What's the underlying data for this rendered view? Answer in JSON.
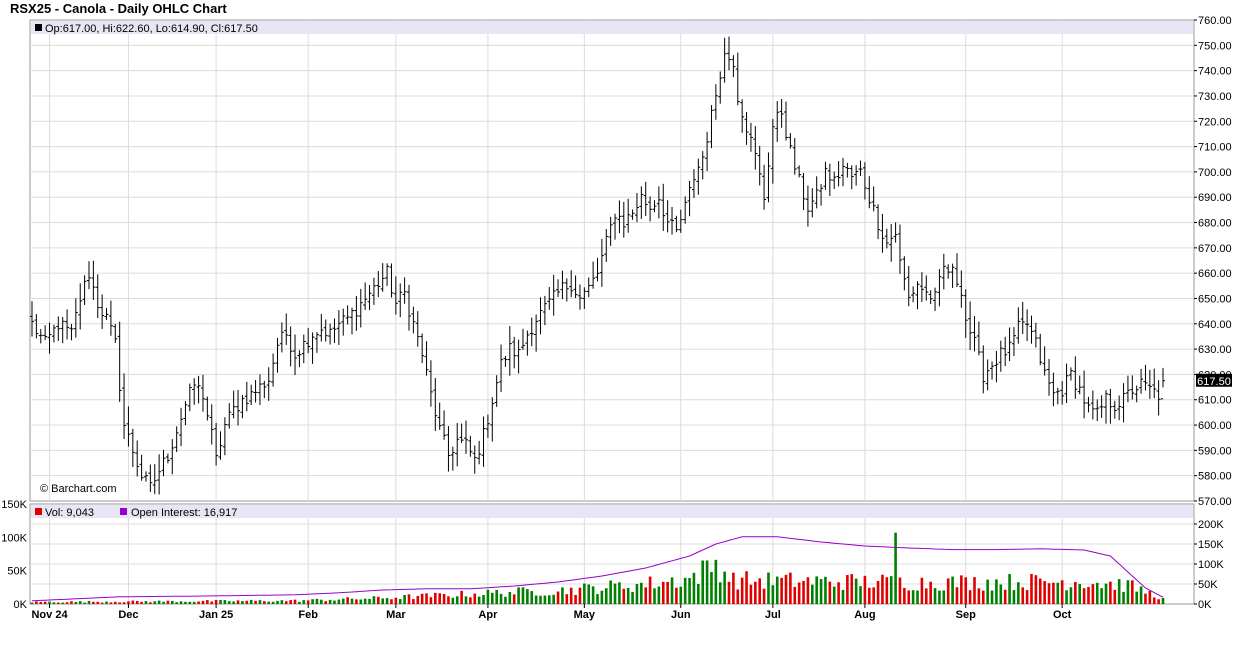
{
  "chart_title": "RSX25 - Canola - Daily OHLC Chart",
  "price_legend": "Op:617.00, Hi:622.60, Lo:614.90, Cl:617.50",
  "watermark": "© Barchart.com",
  "last_price_label": "617.50",
  "volume_legend": {
    "vol_label": "Vol: 9,043",
    "oi_label": "Open Interest: 16,917"
  },
  "colors": {
    "legend_band": "#e6e6f5",
    "up_volume": "#008000",
    "down_volume": "#e00000",
    "open_interest": "#9900cc",
    "price_bar": "#000000",
    "last_price_tag": "#000000",
    "grid": "#dcdcdc"
  },
  "chart_data": [
    {
      "type": "ohlc",
      "price_axis": {
        "ylim": [
          570,
          760
        ],
        "ticks": [
          "570.00",
          "580.00",
          "590.00",
          "600.00",
          "610.00",
          "620.00",
          "630.00",
          "640.00",
          "650.00",
          "660.00",
          "670.00",
          "680.00",
          "690.00",
          "700.00",
          "710.00",
          "720.00",
          "730.00",
          "740.00",
          "750.00",
          "760.00"
        ]
      },
      "x_ticks": [
        "Nov 24",
        "Dec",
        "Jan 25",
        "Feb",
        "Mar",
        "Apr",
        "May",
        "Jun",
        "Jul",
        "Aug",
        "Sep",
        "Oct"
      ],
      "close_anchors": [
        [
          0,
          640
        ],
        [
          3,
          632
        ],
        [
          6,
          640
        ],
        [
          9,
          636
        ],
        [
          11,
          650
        ],
        [
          13,
          660
        ],
        [
          15,
          648
        ],
        [
          17,
          642
        ],
        [
          19,
          632
        ],
        [
          21,
          600
        ],
        [
          23,
          590
        ],
        [
          25,
          580
        ],
        [
          27,
          575
        ],
        [
          29,
          582
        ],
        [
          31,
          588
        ],
        [
          33,
          598
        ],
        [
          35,
          608
        ],
        [
          37,
          616
        ],
        [
          39,
          612
        ],
        [
          41,
          596
        ],
        [
          42,
          586
        ],
        [
          44,
          600
        ],
        [
          46,
          606
        ],
        [
          48,
          610
        ],
        [
          50,
          612
        ],
        [
          52,
          615
        ],
        [
          54,
          618
        ],
        [
          56,
          632
        ],
        [
          58,
          636
        ],
        [
          60,
          628
        ],
        [
          62,
          632
        ],
        [
          64,
          636
        ],
        [
          66,
          638
        ],
        [
          68,
          636
        ],
        [
          70,
          640
        ],
        [
          72,
          642
        ],
        [
          74,
          646
        ],
        [
          76,
          650
        ],
        [
          78,
          654
        ],
        [
          80,
          658
        ],
        [
          81,
          660
        ],
        [
          83,
          648
        ],
        [
          85,
          652
        ],
        [
          87,
          640
        ],
        [
          89,
          628
        ],
        [
          91,
          612
        ],
        [
          93,
          598
        ],
        [
          95,
          588
        ],
        [
          97,
          594
        ],
        [
          99,
          592
        ],
        [
          101,
          586
        ],
        [
          103,
          596
        ],
        [
          105,
          610
        ],
        [
          107,
          624
        ],
        [
          109,
          630
        ],
        [
          111,
          628
        ],
        [
          113,
          636
        ],
        [
          115,
          642
        ],
        [
          117,
          646
        ],
        [
          119,
          650
        ],
        [
          121,
          654
        ],
        [
          123,
          656
        ],
        [
          125,
          650
        ],
        [
          127,
          654
        ],
        [
          129,
          660
        ],
        [
          131,
          672
        ],
        [
          133,
          684
        ],
        [
          135,
          680
        ],
        [
          137,
          684
        ],
        [
          139,
          690
        ],
        [
          141,
          686
        ],
        [
          143,
          690
        ],
        [
          145,
          680
        ],
        [
          147,
          676
        ],
        [
          149,
          686
        ],
        [
          151,
          698
        ],
        [
          153,
          706
        ],
        [
          155,
          722
        ],
        [
          157,
          740
        ],
        [
          158,
          746
        ],
        [
          160,
          744
        ],
        [
          161,
          730
        ],
        [
          163,
          718
        ],
        [
          165,
          706
        ],
        [
          167,
          690
        ],
        [
          169,
          718
        ],
        [
          171,
          724
        ],
        [
          173,
          708
        ],
        [
          175,
          696
        ],
        [
          177,
          686
        ],
        [
          179,
          690
        ],
        [
          181,
          700
        ],
        [
          183,
          696
        ],
        [
          185,
          702
        ],
        [
          187,
          698
        ],
        [
          189,
          700
        ],
        [
          191,
          690
        ],
        [
          193,
          680
        ],
        [
          195,
          672
        ],
        [
          197,
          676
        ],
        [
          198,
          664
        ],
        [
          200,
          650
        ],
        [
          202,
          656
        ],
        [
          204,
          652
        ],
        [
          206,
          650
        ],
        [
          208,
          662
        ],
        [
          210,
          660
        ],
        [
          212,
          654
        ],
        [
          213,
          642
        ],
        [
          215,
          632
        ],
        [
          217,
          620
        ],
        [
          219,
          624
        ],
        [
          221,
          628
        ],
        [
          223,
          630
        ],
        [
          225,
          638
        ],
        [
          227,
          640
        ],
        [
          229,
          632
        ],
        [
          231,
          620
        ],
        [
          233,
          612
        ],
        [
          235,
          614
        ],
        [
          237,
          620
        ],
        [
          239,
          614
        ],
        [
          241,
          606
        ],
        [
          243,
          604
        ],
        [
          245,
          610
        ],
        [
          247,
          608
        ],
        [
          249,
          610
        ],
        [
          251,
          614
        ],
        [
          253,
          616
        ],
        [
          255,
          614
        ],
        [
          257,
          612
        ],
        [
          258,
          617.5
        ]
      ],
      "volume_axis": {
        "ylim": [
          0,
          150000
        ],
        "ticks": [
          "0K",
          "50K",
          "100K",
          "150K"
        ]
      },
      "open_interest_axis": {
        "ylim": [
          0,
          200000
        ],
        "ticks": [
          "0K",
          "50K",
          "100K",
          "150K",
          "200K"
        ]
      },
      "volume_anchors": [
        [
          0,
          3000
        ],
        [
          60,
          5000
        ],
        [
          70,
          7000
        ],
        [
          80,
          9000
        ],
        [
          90,
          12000
        ],
        [
          100,
          15000
        ],
        [
          110,
          18000
        ],
        [
          120,
          20000
        ],
        [
          130,
          25000
        ],
        [
          140,
          30000
        ],
        [
          150,
          38000
        ],
        [
          156,
          60000
        ],
        [
          160,
          36000
        ],
        [
          170,
          35000
        ],
        [
          180,
          34000
        ],
        [
          196,
          33000
        ],
        [
          200,
          32000
        ],
        [
          240,
          34000
        ],
        [
          250,
          28000
        ],
        [
          258,
          9043
        ]
      ],
      "volume_spike": {
        "day": 197,
        "value": 107000
      },
      "open_interest_anchors": [
        [
          0,
          8000
        ],
        [
          20,
          18000
        ],
        [
          40,
          20000
        ],
        [
          60,
          23000
        ],
        [
          70,
          28000
        ],
        [
          80,
          35000
        ],
        [
          90,
          38000
        ],
        [
          100,
          38000
        ],
        [
          110,
          45000
        ],
        [
          120,
          55000
        ],
        [
          130,
          70000
        ],
        [
          140,
          90000
        ],
        [
          150,
          120000
        ],
        [
          156,
          150000
        ],
        [
          162,
          168000
        ],
        [
          170,
          168000
        ],
        [
          180,
          155000
        ],
        [
          190,
          145000
        ],
        [
          200,
          140000
        ],
        [
          210,
          136000
        ],
        [
          220,
          136000
        ],
        [
          230,
          138000
        ],
        [
          240,
          135000
        ],
        [
          246,
          120000
        ],
        [
          250,
          80000
        ],
        [
          254,
          40000
        ],
        [
          258,
          16917
        ]
      ]
    }
  ]
}
